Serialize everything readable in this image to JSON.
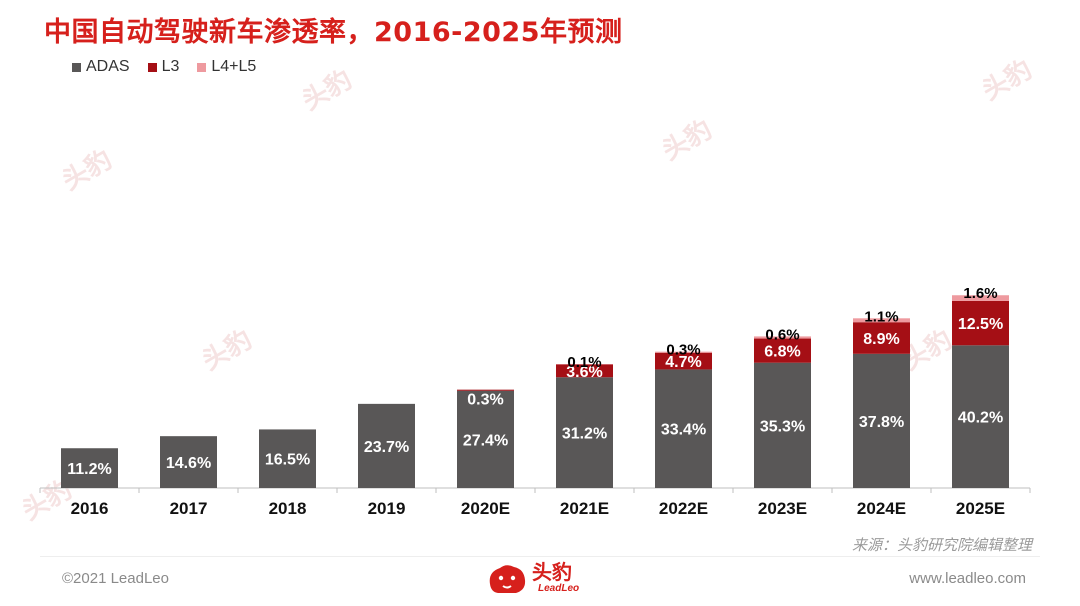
{
  "title": "中国自动驾驶新车渗透率，2016-2025年预测",
  "colors": {
    "ADAS": "#595757",
    "L3": "#a50f15",
    "L4+L5": "#ee9a9f",
    "title": "#d6201c"
  },
  "chart_data": {
    "type": "bar",
    "stacked": true,
    "title": "中国自动驾驶新车渗透率，2016-2025年预测",
    "legend_position": "top-left",
    "categories": [
      "2016",
      "2017",
      "2018",
      "2019",
      "2020E",
      "2021E",
      "2022E",
      "2023E",
      "2024E",
      "2025E"
    ],
    "series": [
      {
        "name": "ADAS",
        "values": [
          11.2,
          14.6,
          16.5,
          23.7,
          27.4,
          31.2,
          33.4,
          35.3,
          37.8,
          40.2
        ],
        "labels": [
          "11.2%",
          "14.6%",
          "16.5%",
          "23.7%",
          "27.4%",
          "31.2%",
          "33.4%",
          "35.3%",
          "37.8%",
          "40.2%"
        ]
      },
      {
        "name": "L3",
        "values": [
          0,
          0,
          0,
          0,
          0.3,
          3.6,
          4.7,
          6.8,
          8.9,
          12.5
        ],
        "labels": [
          "",
          "",
          "",
          "",
          "0.3%",
          "3.6%",
          "4.7%",
          "6.8%",
          "8.9%",
          "12.5%"
        ]
      },
      {
        "name": "L4+L5",
        "values": [
          0,
          0,
          0,
          0,
          0,
          0.1,
          0.3,
          0.6,
          1.1,
          1.6
        ],
        "labels": [
          "",
          "",
          "",
          "",
          "",
          "0.1%",
          "0.3%",
          "0.6%",
          "1.1%",
          "1.6%"
        ]
      }
    ],
    "ylim": [
      0,
      56
    ],
    "grid": false
  },
  "source": "来源：头豹研究院编辑整理",
  "footer": {
    "copyright": "©2021 LeadLeo",
    "website": "www.leadleo.com"
  },
  "logo": {
    "name_cn": "头豹",
    "name_en": "LeadLeo",
    "icon": "leopard-head-icon"
  },
  "watermark": {
    "text": "头豹"
  }
}
